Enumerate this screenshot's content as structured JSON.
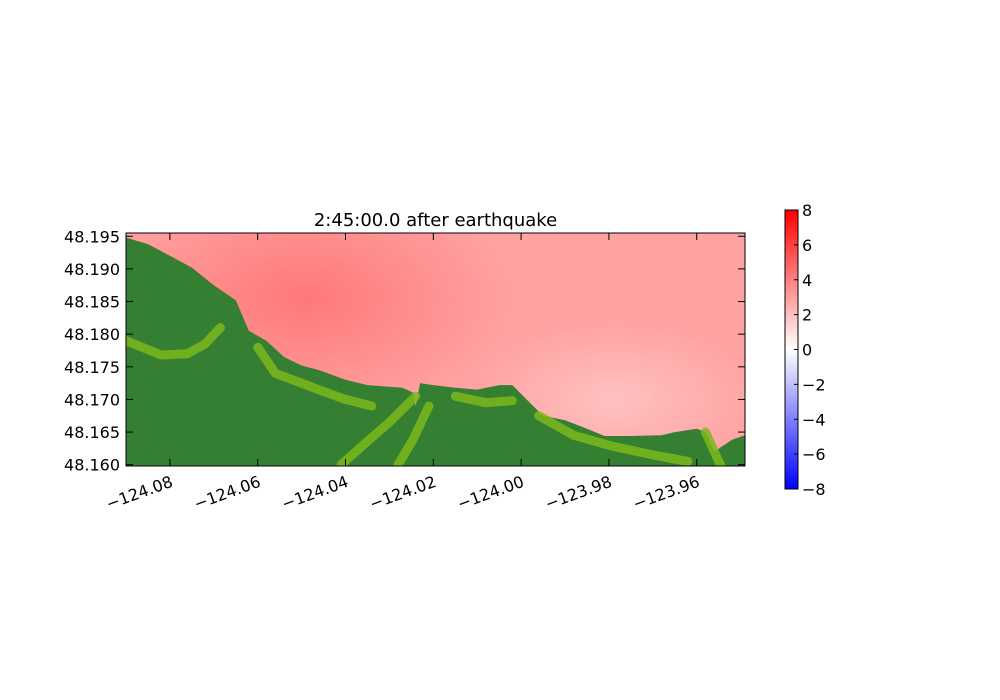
{
  "chart_data": {
    "type": "heatmap",
    "title": "2:45:00.0 after earthquake",
    "xlabel": "",
    "ylabel": "",
    "xlim": [
      -124.09,
      -123.949
    ],
    "ylim": [
      48.1598,
      48.1955
    ],
    "x_ticks": [
      {
        "value": -124.08,
        "label": "−124.08"
      },
      {
        "value": -124.06,
        "label": "−124.06"
      },
      {
        "value": -124.04,
        "label": "−124.04"
      },
      {
        "value": -124.02,
        "label": "−124.02"
      },
      {
        "value": -124.0,
        "label": "−124.00"
      },
      {
        "value": -123.98,
        "label": "−123.98"
      },
      {
        "value": -123.96,
        "label": "−123.96"
      }
    ],
    "y_ticks": [
      {
        "value": 48.195,
        "label": "48.195"
      },
      {
        "value": 48.19,
        "label": "48.190"
      },
      {
        "value": 48.185,
        "label": "48.185"
      },
      {
        "value": 48.18,
        "label": "48.180"
      },
      {
        "value": 48.175,
        "label": "48.175"
      },
      {
        "value": 48.17,
        "label": "48.170"
      },
      {
        "value": 48.165,
        "label": "48.165"
      },
      {
        "value": 48.16,
        "label": "48.160"
      }
    ],
    "colorbar": {
      "min": -8,
      "max": 8,
      "ticks": [
        {
          "value": 8,
          "label": "8"
        },
        {
          "value": 6,
          "label": "6"
        },
        {
          "value": 4,
          "label": "4"
        },
        {
          "value": 2,
          "label": "2"
        },
        {
          "value": 0,
          "label": "0"
        },
        {
          "value": -2,
          "label": "−2"
        },
        {
          "value": -4,
          "label": "−4"
        },
        {
          "value": -6,
          "label": "−6"
        },
        {
          "value": -8,
          "label": "−8"
        }
      ],
      "colors": {
        "low": "#0000ff",
        "mid": "#ffffff",
        "high": "#ff0000"
      }
    },
    "land_colors": {
      "dark": "#357f33",
      "light": "#7ab81c"
    },
    "coastline": [
      [
        -124.09,
        48.1948
      ],
      [
        -124.085,
        48.1938
      ],
      [
        -124.08,
        48.192
      ],
      [
        -124.075,
        48.1902
      ],
      [
        -124.07,
        48.1875
      ],
      [
        -124.065,
        48.1852
      ],
      [
        -124.062,
        48.1805
      ],
      [
        -124.058,
        48.179
      ],
      [
        -124.054,
        48.1765
      ],
      [
        -124.05,
        48.1752
      ],
      [
        -124.046,
        48.1745
      ],
      [
        -124.04,
        48.173
      ],
      [
        -124.035,
        48.1722
      ],
      [
        -124.027,
        48.1718
      ],
      [
        -124.0245,
        48.171
      ],
      [
        -124.024,
        48.169
      ],
      [
        -124.023,
        48.1725
      ],
      [
        -124.02,
        48.1722
      ],
      [
        -124.015,
        48.1718
      ],
      [
        -124.01,
        48.1715
      ],
      [
        -124.005,
        48.1722
      ],
      [
        -124.002,
        48.1722
      ],
      [
        -123.998,
        48.1695
      ],
      [
        -123.995,
        48.1675
      ],
      [
        -123.99,
        48.1668
      ],
      [
        -123.985,
        48.1655
      ],
      [
        -123.981,
        48.1644
      ],
      [
        -123.975,
        48.1644
      ],
      [
        -123.968,
        48.1645
      ],
      [
        -123.965,
        48.165
      ],
      [
        -123.96,
        48.1655
      ],
      [
        -123.958,
        48.165
      ],
      [
        -123.956,
        48.162
      ],
      [
        -123.952,
        48.1638
      ],
      [
        -123.949,
        48.1645
      ]
    ],
    "rivers": [
      [
        [
          -124.09,
          48.179
        ],
        [
          -124.082,
          48.1768
        ],
        [
          -124.076,
          48.177
        ],
        [
          -124.072,
          48.1785
        ],
        [
          -124.0685,
          48.181
        ]
      ],
      [
        [
          -124.06,
          48.178
        ],
        [
          -124.056,
          48.174
        ],
        [
          -124.05,
          48.1725
        ],
        [
          -124.045,
          48.1712
        ],
        [
          -124.04,
          48.17
        ],
        [
          -124.034,
          48.169
        ]
      ],
      [
        [
          -124.024,
          48.1705
        ],
        [
          -124.03,
          48.1665
        ],
        [
          -124.036,
          48.163
        ],
        [
          -124.041,
          48.16
        ]
      ],
      [
        [
          -124.021,
          48.169
        ],
        [
          -124.0245,
          48.164
        ],
        [
          -124.028,
          48.16
        ]
      ],
      [
        [
          -124.015,
          48.1705
        ],
        [
          -124.008,
          48.1695
        ],
        [
          -124.002,
          48.1698
        ]
      ],
      [
        [
          -123.996,
          48.1675
        ],
        [
          -123.988,
          48.1645
        ],
        [
          -123.979,
          48.1628
        ],
        [
          -123.97,
          48.1615
        ],
        [
          -123.962,
          48.1605
        ]
      ],
      [
        [
          -123.958,
          48.165
        ],
        [
          -123.956,
          48.162
        ],
        [
          -123.9545,
          48.1598
        ]
      ]
    ],
    "surface_hotspots": [
      {
        "x": -124.052,
        "y": 48.184,
        "value": 5.2
      },
      {
        "x": -124.04,
        "y": 48.18,
        "value": 4.4
      },
      {
        "x": -123.975,
        "y": 48.167,
        "value": 2.2
      }
    ],
    "surface_base_value": 3.8
  }
}
